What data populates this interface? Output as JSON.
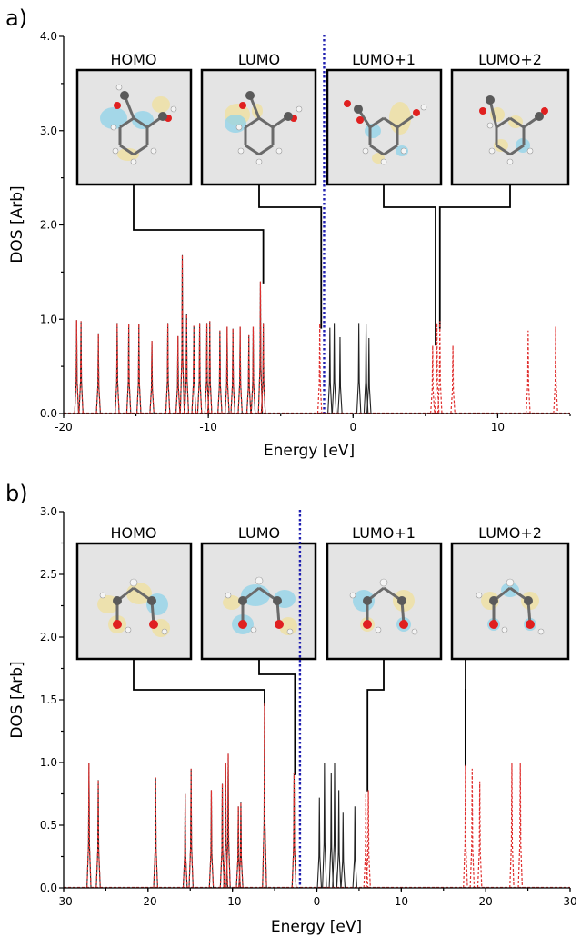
{
  "chart_data": [
    {
      "type": "line",
      "panel_label": "a)",
      "xlabel": "Energy [eV]",
      "ylabel": "DOS [Arb]",
      "xlim": [
        -20,
        15
      ],
      "ylim": [
        0,
        4.0
      ],
      "x_ticks": [
        -20,
        -10,
        0,
        10
      ],
      "y_ticks": [
        "0.0",
        "1.0",
        "2.0",
        "3.0",
        "4.0"
      ],
      "fermi_level": -2.0,
      "series": [
        {
          "style": "solid-black",
          "peaks": [
            {
              "x": -19.1,
              "y": 0.99
            },
            {
              "x": -18.8,
              "y": 0.98
            },
            {
              "x": -17.6,
              "y": 0.85
            },
            {
              "x": -16.3,
              "y": 0.96
            },
            {
              "x": -15.5,
              "y": 0.95
            },
            {
              "x": -14.8,
              "y": 0.95
            },
            {
              "x": -13.9,
              "y": 0.77
            },
            {
              "x": -12.8,
              "y": 0.96
            },
            {
              "x": -12.1,
              "y": 0.82
            },
            {
              "x": -11.8,
              "y": 1.68
            },
            {
              "x": -11.5,
              "y": 1.05
            },
            {
              "x": -11.0,
              "y": 0.93
            },
            {
              "x": -10.6,
              "y": 0.96
            },
            {
              "x": -10.1,
              "y": 0.96
            },
            {
              "x": -9.9,
              "y": 0.98
            },
            {
              "x": -9.2,
              "y": 0.88
            },
            {
              "x": -8.7,
              "y": 0.92
            },
            {
              "x": -8.3,
              "y": 0.9
            },
            {
              "x": -7.8,
              "y": 0.92
            },
            {
              "x": -7.2,
              "y": 0.83
            },
            {
              "x": -6.9,
              "y": 0.92
            },
            {
              "x": -6.4,
              "y": 1.4
            },
            {
              "x": -6.2,
              "y": 0.96
            },
            {
              "x": -1.6,
              "y": 0.91
            },
            {
              "x": -1.3,
              "y": 0.96
            },
            {
              "x": -0.9,
              "y": 0.81
            },
            {
              "x": 0.4,
              "y": 0.96
            },
            {
              "x": 0.9,
              "y": 0.95
            },
            {
              "x": 1.1,
              "y": 0.8
            }
          ]
        },
        {
          "style": "dashed-red",
          "peaks": [
            {
              "x": -19.1,
              "y": 0.99
            },
            {
              "x": -18.8,
              "y": 0.98
            },
            {
              "x": -17.6,
              "y": 0.85
            },
            {
              "x": -16.3,
              "y": 0.96
            },
            {
              "x": -15.5,
              "y": 0.95
            },
            {
              "x": -14.8,
              "y": 0.95
            },
            {
              "x": -13.9,
              "y": 0.77
            },
            {
              "x": -12.8,
              "y": 0.96
            },
            {
              "x": -12.1,
              "y": 0.82
            },
            {
              "x": -11.8,
              "y": 1.68
            },
            {
              "x": -11.5,
              "y": 1.05
            },
            {
              "x": -11.0,
              "y": 0.93
            },
            {
              "x": -10.6,
              "y": 0.96
            },
            {
              "x": -10.1,
              "y": 0.96
            },
            {
              "x": -9.9,
              "y": 0.98
            },
            {
              "x": -9.2,
              "y": 0.88
            },
            {
              "x": -8.7,
              "y": 0.92
            },
            {
              "x": -8.3,
              "y": 0.9
            },
            {
              "x": -7.8,
              "y": 0.92
            },
            {
              "x": -7.2,
              "y": 0.83
            },
            {
              "x": -6.9,
              "y": 0.92
            },
            {
              "x": -6.4,
              "y": 1.4
            },
            {
              "x": -6.2,
              "y": 0.96
            },
            {
              "x": -2.3,
              "y": 0.95
            },
            {
              "x": 5.5,
              "y": 0.72
            },
            {
              "x": 5.8,
              "y": 0.96
            },
            {
              "x": 6.0,
              "y": 0.98
            },
            {
              "x": 6.9,
              "y": 0.72
            },
            {
              "x": 12.1,
              "y": 0.88
            },
            {
              "x": 14.0,
              "y": 0.92
            }
          ]
        }
      ],
      "insets": [
        {
          "label": "HOMO",
          "target_x": -6.2,
          "target_y": 1.38
        },
        {
          "label": "LUMO",
          "target_x": -2.2,
          "target_y": 0.9
        },
        {
          "label": "LUMO+1",
          "target_x": 5.7,
          "target_y": 0.72
        },
        {
          "label": "LUMO+2",
          "target_x": 6.0,
          "target_y": 0.9
        }
      ]
    },
    {
      "type": "line",
      "panel_label": "b)",
      "xlabel": "Energy [eV]",
      "ylabel": "DOS [Arb]",
      "xlim": [
        -30,
        30
      ],
      "ylim": [
        0,
        3.0
      ],
      "x_ticks": [
        -30,
        -20,
        -10,
        0,
        10,
        20,
        30
      ],
      "y_ticks": [
        "0.0",
        "0.5",
        "1.0",
        "1.5",
        "2.0",
        "2.5",
        "3.0"
      ],
      "fermi_level": -2.0,
      "series": [
        {
          "style": "solid-black",
          "peaks": [
            {
              "x": -27.0,
              "y": 1.0
            },
            {
              "x": -25.9,
              "y": 0.86
            },
            {
              "x": -19.1,
              "y": 0.88
            },
            {
              "x": -15.6,
              "y": 0.75
            },
            {
              "x": -14.9,
              "y": 0.95
            },
            {
              "x": -12.5,
              "y": 0.78
            },
            {
              "x": -11.2,
              "y": 0.83
            },
            {
              "x": -10.8,
              "y": 1.0
            },
            {
              "x": -10.5,
              "y": 1.07
            },
            {
              "x": -9.3,
              "y": 0.65
            },
            {
              "x": -9.0,
              "y": 0.68
            },
            {
              "x": -6.2,
              "y": 1.47
            },
            {
              "x": -2.7,
              "y": 0.92
            },
            {
              "x": 0.3,
              "y": 0.72
            },
            {
              "x": 0.9,
              "y": 1.0
            },
            {
              "x": 1.7,
              "y": 0.92
            },
            {
              "x": 2.1,
              "y": 1.0
            },
            {
              "x": 2.6,
              "y": 0.78
            },
            {
              "x": 3.1,
              "y": 0.6
            },
            {
              "x": 4.5,
              "y": 0.65
            }
          ]
        },
        {
          "style": "dashed-red",
          "peaks": [
            {
              "x": -27.0,
              "y": 1.0
            },
            {
              "x": -25.9,
              "y": 0.86
            },
            {
              "x": -19.1,
              "y": 0.88
            },
            {
              "x": -15.6,
              "y": 0.75
            },
            {
              "x": -14.9,
              "y": 0.95
            },
            {
              "x": -12.5,
              "y": 0.78
            },
            {
              "x": -11.2,
              "y": 0.83
            },
            {
              "x": -10.8,
              "y": 1.0
            },
            {
              "x": -10.5,
              "y": 1.07
            },
            {
              "x": -9.3,
              "y": 0.65
            },
            {
              "x": -9.0,
              "y": 0.68
            },
            {
              "x": -6.2,
              "y": 1.47
            },
            {
              "x": -2.7,
              "y": 0.92
            },
            {
              "x": 5.8,
              "y": 0.75
            },
            {
              "x": 6.1,
              "y": 0.78
            },
            {
              "x": 17.6,
              "y": 0.98
            },
            {
              "x": 18.4,
              "y": 0.95
            },
            {
              "x": 19.3,
              "y": 0.85
            },
            {
              "x": 23.1,
              "y": 1.0
            },
            {
              "x": 24.1,
              "y": 1.0
            }
          ]
        }
      ],
      "insets": [
        {
          "label": "HOMO",
          "target_x": -6.2,
          "target_y": 1.45
        },
        {
          "label": "LUMO",
          "target_x": -2.6,
          "target_y": 0.9
        },
        {
          "label": "LUMO+1",
          "target_x": 6.0,
          "target_y": 0.77
        },
        {
          "label": "LUMO+2",
          "target_x": 17.6,
          "target_y": 0.97
        }
      ]
    }
  ],
  "colors": {
    "homo_black": "#222222",
    "lumo_red": "#e0302f",
    "fermi_blue": "#1f1fb0",
    "inset_bg": "#e4e4e4"
  }
}
